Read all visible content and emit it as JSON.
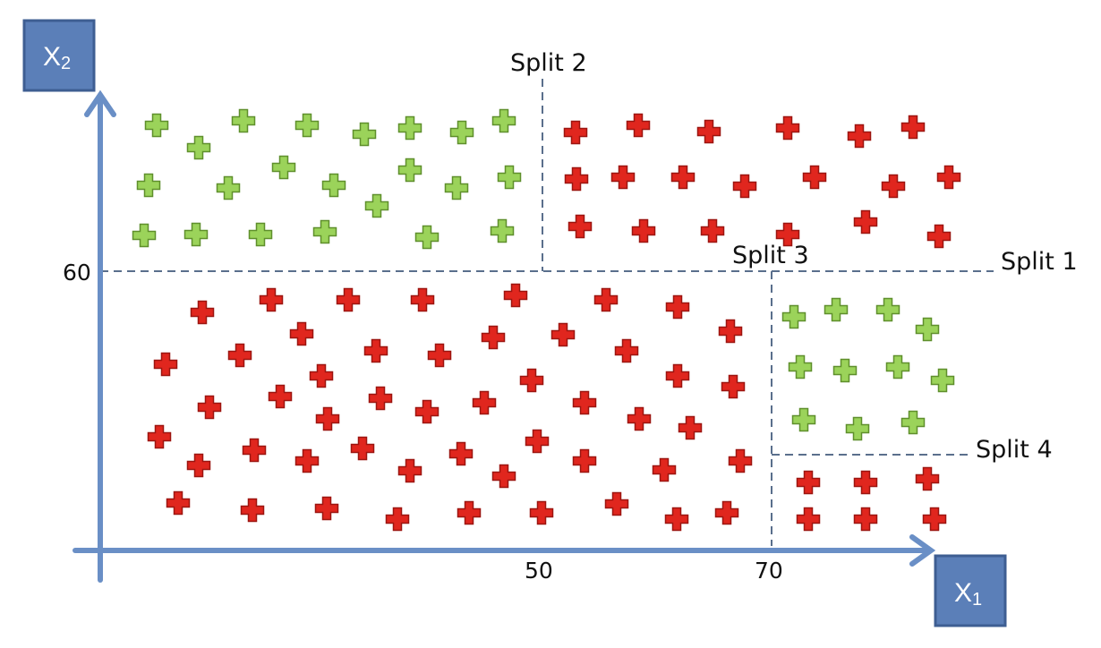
{
  "axes": {
    "x_label": "X",
    "x_subscript": "1",
    "y_label": "X",
    "y_subscript": "2",
    "x_ticks": [
      "50",
      "70"
    ],
    "y_ticks": [
      "60"
    ]
  },
  "splits": {
    "split1": "Split 1",
    "split2": "Split 2",
    "split3": "Split 3",
    "split4": "Split 4"
  },
  "colors": {
    "green_class": "#9bd35a",
    "red_class": "#e0261e",
    "axis": "#6a8fc6",
    "axis_box": "#5b7fb8",
    "split_line": "#5a6f8c"
  },
  "regions": [
    {
      "name": "region-x1-lt-50-x2-gt-60",
      "class": "green",
      "count": 27
    },
    {
      "name": "region-x1-gt-50-x2-gt-60",
      "class": "red",
      "count": 20
    },
    {
      "name": "region-x1-lt-70-x2-lt-60",
      "class": "red",
      "count": 62
    },
    {
      "name": "region-x1-gt-70-upper",
      "class": "green",
      "count": 11
    },
    {
      "name": "region-x1-gt-70-lower",
      "class": "red",
      "count": 6
    }
  ]
}
